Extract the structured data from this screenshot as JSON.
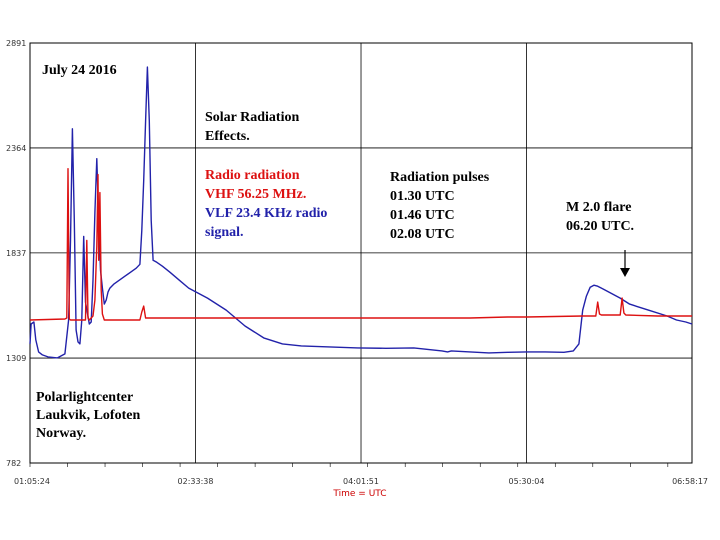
{
  "chart_data": {
    "type": "line",
    "title": "July 24 2016",
    "xlabel": "Time = UTC",
    "ylabel": "",
    "ylim": [
      782,
      2891
    ],
    "xlim": [
      "01:05:24",
      "06:58:17"
    ],
    "yticks": [
      782,
      1309,
      1837,
      2364,
      2891
    ],
    "xticks": [
      "01:05:24",
      "02:33:38",
      "04:01:51",
      "05:30:04",
      "06:58:17"
    ],
    "grid": true,
    "series": [
      {
        "name": "VLF 23.4 KHz radio signal",
        "color": "#2222aa",
        "x": [
          "01:05:24",
          "01:06:00",
          "01:07:30",
          "01:08:30",
          "01:10:00",
          "01:12:00",
          "01:15:00",
          "01:20:00",
          "01:24:00",
          "01:26:00",
          "01:27:00",
          "01:28:00",
          "01:29:00",
          "01:30:00",
          "01:31:00",
          "01:32:00",
          "01:33:00",
          "01:34:00",
          "01:35:00",
          "01:37:00",
          "01:38:00",
          "01:39:00",
          "01:40:00",
          "01:41:00",
          "01:42:00",
          "01:43:00",
          "01:44:00",
          "01:45:00",
          "01:46:00",
          "01:47:00",
          "01:48:00",
          "01:50:00",
          "01:53:00",
          "01:56:00",
          "01:59:00",
          "02:02:00",
          "02:04:00",
          "02:05:00",
          "02:06:00",
          "02:07:00",
          "02:08:00",
          "02:09:00",
          "02:10:00",
          "02:11:00",
          "02:13:00",
          "02:16:00",
          "02:20:00",
          "02:25:00",
          "02:30:00",
          "02:40:00",
          "02:50:00",
          "03:00:00",
          "03:10:00",
          "03:20:00",
          "03:30:00",
          "03:45:00",
          "04:00:00",
          "04:15:00",
          "04:30:00",
          "04:35:00",
          "04:45:00",
          "04:48:00",
          "04:50:00",
          "05:00:00",
          "05:10:00",
          "05:20:00",
          "05:30:00",
          "05:40:00",
          "05:50:00",
          "05:55:00",
          "05:58:00",
          "06:00:00",
          "06:02:00",
          "06:04:00",
          "06:06:00",
          "06:08:00",
          "06:10:00",
          "06:12:00",
          "06:16:00",
          "06:20:00",
          "06:25:00",
          "06:35:00",
          "06:45:00",
          "06:50:00",
          "06:55:00",
          "06:58:17"
        ],
        "y": [
          1380,
          1480,
          1490,
          1400,
          1340,
          1325,
          1315,
          1310,
          1330,
          1500,
          1900,
          2460,
          2000,
          1450,
          1390,
          1380,
          1500,
          1920,
          1590,
          1480,
          1490,
          1700,
          2040,
          2310,
          2000,
          1750,
          1660,
          1580,
          1600,
          1640,
          1660,
          1680,
          1700,
          1720,
          1740,
          1760,
          1780,
          1950,
          2200,
          2500,
          2770,
          2500,
          2000,
          1800,
          1790,
          1770,
          1740,
          1700,
          1660,
          1610,
          1550,
          1470,
          1410,
          1380,
          1370,
          1365,
          1360,
          1358,
          1360,
          1355,
          1345,
          1340,
          1345,
          1340,
          1335,
          1338,
          1340,
          1340,
          1338,
          1345,
          1380,
          1550,
          1620,
          1665,
          1675,
          1670,
          1660,
          1650,
          1630,
          1610,
          1580,
          1550,
          1520,
          1500,
          1490,
          1480
        ]
      },
      {
        "name": "Radio radiation VHF 56.25 MHz.",
        "color": "#dd1111",
        "x": [
          "01:05:24",
          "01:24:00",
          "01:25:00",
          "01:25:40",
          "01:26:20",
          "01:27:00",
          "01:35:00",
          "01:35:40",
          "01:36:20",
          "01:37:00",
          "01:39:00",
          "01:40:00",
          "01:41:00",
          "01:41:40",
          "01:42:00",
          "01:42:40",
          "01:43:20",
          "01:44:00",
          "01:45:00",
          "01:46:00",
          "02:04:00",
          "02:05:00",
          "02:06:00",
          "02:07:00",
          "03:00:00",
          "04:00:00",
          "05:00:00",
          "05:20:00",
          "05:30:00",
          "06:00:00",
          "06:07:00",
          "06:08:00",
          "06:09:00",
          "06:10:00",
          "06:20:00",
          "06:21:00",
          "06:22:00",
          "06:23:00",
          "06:40:00",
          "06:58:17"
        ],
        "y": [
          1500,
          1505,
          1510,
          2260,
          1505,
          1500,
          1500,
          1900,
          1510,
          1500,
          1520,
          1600,
          1870,
          2230,
          1800,
          2140,
          1650,
          1530,
          1500,
          1500,
          1500,
          1540,
          1570,
          1510,
          1510,
          1510,
          1510,
          1515,
          1515,
          1520,
          1520,
          1590,
          1530,
          1525,
          1525,
          1610,
          1535,
          1525,
          1520,
          1520
        ]
      }
    ],
    "annotations": [
      {
        "text": "July 24 2016",
        "color": "#000000"
      },
      {
        "text": "Solar Radiation",
        "color": "#000000"
      },
      {
        "text": "Effects.",
        "color": "#000000"
      },
      {
        "text": "Radio radiation",
        "color": "#dd1111"
      },
      {
        "text": "VHF 56.25 MHz.",
        "color": "#dd1111"
      },
      {
        "text": "VLF 23.4 KHz radio",
        "color": "#2222aa"
      },
      {
        "text": "signal.",
        "color": "#2222aa"
      },
      {
        "text": "Radiation pulses",
        "color": "#000000"
      },
      {
        "text": "01.30 UTC",
        "color": "#000000"
      },
      {
        "text": "01.46 UTC",
        "color": "#000000"
      },
      {
        "text": "02.08 UTC",
        "color": "#000000"
      },
      {
        "text": "M 2.0 flare",
        "color": "#000000"
      },
      {
        "text": "06.20 UTC.",
        "color": "#000000"
      },
      {
        "text": "Polarlightcenter",
        "color": "#000000"
      },
      {
        "text": "Laukvik, Lofoten",
        "color": "#000000"
      },
      {
        "text": "Norway.",
        "color": "#000000"
      }
    ]
  }
}
